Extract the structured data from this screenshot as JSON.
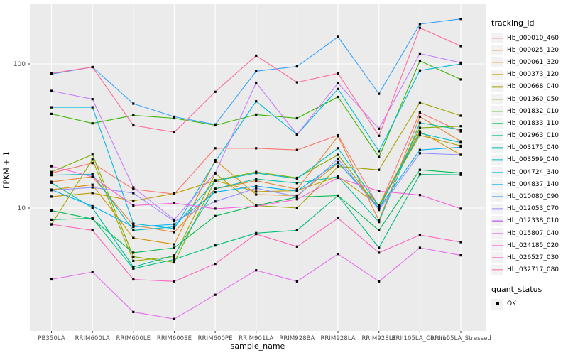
{
  "figure": {
    "colors": {
      "panel_bg": "#EBEBEB",
      "grid": "#FFFFFF",
      "tick_text": "#4D4D4D",
      "tick_mark": "#333333",
      "point": "#000000"
    },
    "legend": {
      "tracking_title": "tracking_id",
      "quant_title": "quant_status",
      "quant_ok_label": "OK"
    }
  },
  "chart_data": {
    "type": "line",
    "title": "",
    "xlabel": "sample_name",
    "ylabel": "FPKM + 1",
    "y_scale": "log10",
    "ylim": [
      1.4,
      260
    ],
    "y_major_ticks": [
      100,
      10
    ],
    "y_tick_labels": [
      "100",
      "10"
    ],
    "y_minor_gridlines": [
      31.62,
      3.162
    ],
    "grid": true,
    "legend_position": "right",
    "point_marker": {
      "shape": "square",
      "color": "#000000",
      "label": "OK"
    },
    "categories": [
      "PB350LA",
      "RRIM600LA",
      "RRIM600LE",
      "RRIM600SE",
      "RRIM600PE",
      "RRIM901LA",
      "RRIM928BA",
      "RRIM928LA",
      "RRIM928LE",
      "RRII105LA_Control",
      "RRII105LA_Stressed"
    ],
    "series": [
      {
        "name": "Hb_000010_460",
        "color": "#F8766D",
        "values": [
          17.5,
          20.5,
          13.5,
          12.5,
          26,
          26,
          25.3,
          32,
          10.2,
          46,
          34
        ]
      },
      {
        "name": "Hb_000025_120",
        "color": "#EA8331",
        "values": [
          15.2,
          16.5,
          7.6,
          6.8,
          13.6,
          15.5,
          13.5,
          31.5,
          8.2,
          43,
          29
        ]
      },
      {
        "name": "Hb_000061_320",
        "color": "#D89000",
        "values": [
          13.4,
          14.5,
          6.2,
          5.6,
          21.5,
          12.4,
          12.2,
          20.5,
          10.5,
          34,
          23.4
        ]
      },
      {
        "name": "Hb_000373_120",
        "color": "#C09B00",
        "values": [
          12,
          12.7,
          11.2,
          12.6,
          15.5,
          13,
          13.2,
          16.6,
          10.4,
          32,
          27
        ]
      },
      {
        "name": "Hb_000668_040",
        "color": "#A3A500",
        "values": [
          7.7,
          21.7,
          4.3,
          4.6,
          17.4,
          10.4,
          10,
          19.4,
          18.4,
          54,
          43.7
        ]
      },
      {
        "name": "Hb_001360_050",
        "color": "#7CAE00",
        "values": [
          17.8,
          23.5,
          4.6,
          4.2,
          15.6,
          17.8,
          16.2,
          23.4,
          9.9,
          36,
          37
        ]
      },
      {
        "name": "Hb_001832_010",
        "color": "#39B600",
        "values": [
          45,
          38.7,
          44,
          42,
          37.5,
          44.5,
          42,
          59,
          22.6,
          105,
          78
        ]
      },
      {
        "name": "Hb_001833_110",
        "color": "#00BB4E",
        "values": [
          9.6,
          8.4,
          4.9,
          5.3,
          8.8,
          10.4,
          11.9,
          12.2,
          7,
          18.4,
          17.5
        ]
      },
      {
        "name": "Hb_002963_010",
        "color": "#00BF7D",
        "values": [
          8.3,
          8.5,
          3.8,
          4.4,
          5.5,
          6.7,
          7,
          12.2,
          5.3,
          17.1,
          17
        ]
      },
      {
        "name": "Hb_003175_040",
        "color": "#00C1A3",
        "values": [
          15,
          10,
          3.9,
          4.7,
          13.6,
          15.9,
          14.9,
          16.5,
          8,
          39,
          35
        ]
      },
      {
        "name": "Hb_003599_040",
        "color": "#00BFC4",
        "values": [
          16.9,
          17.2,
          7,
          7.4,
          15.4,
          17.5,
          16,
          26,
          10.3,
          33,
          28.5
        ]
      },
      {
        "name": "Hb_004724_340",
        "color": "#00BAE0",
        "values": [
          50,
          50,
          7.8,
          7.2,
          21,
          55,
          32.4,
          67,
          24.8,
          90,
          100
        ]
      },
      {
        "name": "Hb_004837_140",
        "color": "#00B0F6",
        "values": [
          13.4,
          10.3,
          7.4,
          7.7,
          12.9,
          14.2,
          13.1,
          20.8,
          10,
          25.3,
          26.4
        ]
      },
      {
        "name": "Hb_010080_090",
        "color": "#35A2FF",
        "values": [
          85,
          95,
          53,
          43,
          38,
          89,
          96,
          154,
          62,
          189,
          205
        ]
      },
      {
        "name": "Hb_012053_070",
        "color": "#9590FF",
        "values": [
          13.3,
          13.9,
          12.7,
          8.1,
          11.1,
          13.7,
          12,
          22,
          9.7,
          24,
          23.4
        ]
      },
      {
        "name": "Hb_012338_010",
        "color": "#C77CFF",
        "values": [
          65,
          57,
          13.9,
          8.3,
          17.5,
          74,
          32.4,
          73.5,
          35.5,
          118,
          102
        ]
      },
      {
        "name": "Hb_015807_040",
        "color": "#E76BF3",
        "values": [
          3.2,
          3.6,
          1.9,
          1.7,
          2.5,
          3.7,
          3.1,
          4.8,
          3.1,
          5.3,
          4.7
        ]
      },
      {
        "name": "Hb_024185_020",
        "color": "#FA62DB",
        "values": [
          19.5,
          16.5,
          10.4,
          10.8,
          9.9,
          10.3,
          11.5,
          16.2,
          13.1,
          12.3,
          9.9
        ]
      },
      {
        "name": "Hb_026527_030",
        "color": "#FF62BC",
        "values": [
          7.7,
          7,
          3.2,
          3.1,
          4.1,
          6.6,
          5.4,
          8.5,
          4.9,
          6.5,
          5.8
        ]
      },
      {
        "name": "Hb_032717_080",
        "color": "#FF6A98",
        "values": [
          86,
          95,
          37.5,
          33.6,
          64,
          114,
          74.5,
          86,
          31.7,
          178,
          133
        ]
      }
    ]
  }
}
